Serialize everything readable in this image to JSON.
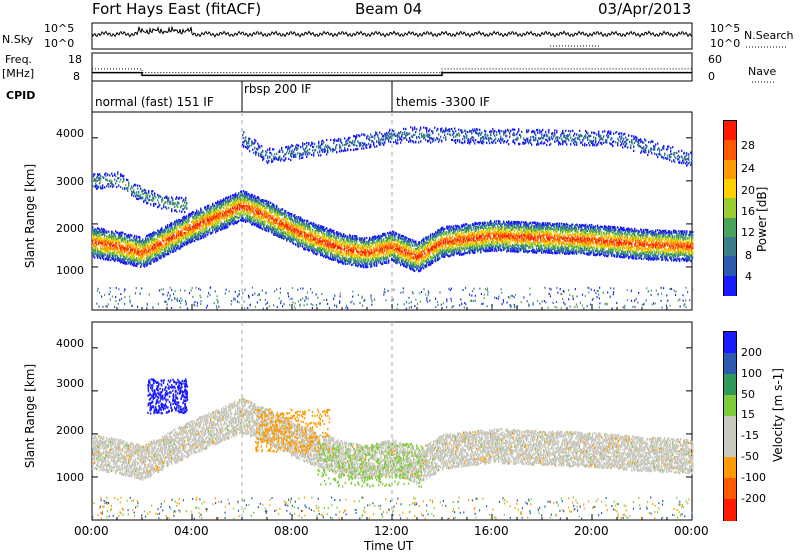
{
  "header": {
    "station": "Fort Hays East (fitACF)",
    "beam": "Beam 04",
    "date": "03/Apr/2013"
  },
  "top_panels": {
    "nsky_label": "N.Sky",
    "nsearch_label": "N.Search",
    "nsky_ticks": [
      "10^5",
      "10^0"
    ],
    "nsearch_ticks": [
      "10^5",
      "10^0"
    ],
    "freq_label_1": "Freq.",
    "freq_label_2": "[MHz]",
    "freq_ticks": [
      "18",
      "8"
    ],
    "nave_label": "Nave",
    "nave_ticks": [
      "60",
      "0"
    ],
    "cpid_label": "CPID",
    "freq_series_mhz": [
      [
        0,
        11
      ],
      [
        2,
        11
      ],
      [
        2,
        10
      ],
      [
        14,
        10
      ],
      [
        14,
        11
      ],
      [
        24,
        11
      ]
    ],
    "nave_series": [
      [
        0,
        26
      ],
      [
        2,
        26
      ],
      [
        2,
        18
      ],
      [
        14,
        18
      ],
      [
        14,
        26
      ],
      [
        24,
        26
      ]
    ],
    "cpid_segments": [
      {
        "start": 0,
        "end": 6,
        "label": "normal (fast) 151 IF"
      },
      {
        "start": 6,
        "end": 12,
        "label": "rbsp 200 IF"
      },
      {
        "start": 12,
        "end": 24,
        "label": "themis -3300 IF"
      }
    ]
  },
  "colorbars": {
    "power_label": "Power [dB]",
    "power_ticks": [
      "28",
      "24",
      "20",
      "16",
      "12",
      "8",
      "4"
    ],
    "velocity_label": "Velocity [m s-1]",
    "velocity_ticks": [
      "200",
      "100",
      "50",
      "15",
      "-15",
      "-50",
      "-100",
      "-200"
    ]
  },
  "axes": {
    "ylabel": "Slant Range [km]",
    "yticks": [
      "4000",
      "3000",
      "2000",
      "1000"
    ],
    "xlabel": "Time UT",
    "xticks": [
      "00:00",
      "04:00",
      "08:00",
      "12:00",
      "16:00",
      "20:00",
      "00:00"
    ]
  },
  "chart_data": [
    {
      "type": "heatmap",
      "title": "Power",
      "xlabel": "Time UT",
      "ylabel": "Slant Range [km]",
      "xlim": [
        0,
        24
      ],
      "ylim": [
        0,
        4600
      ],
      "colorbar": {
        "label": "Power [dB]",
        "range": [
          0,
          30
        ],
        "colors": [
          "#1a1aff",
          "#2a5bb0",
          "#3a7e8c",
          "#4aa35a",
          "#9bcc2f",
          "#ffd000",
          "#ff9a00",
          "#ff5a00",
          "#ff1a00"
        ]
      },
      "echo_bands": [
        {
          "name": "main",
          "points": [
            [
              0,
              1600
            ],
            [
              1,
              1500
            ],
            [
              2,
              1350
            ],
            [
              3,
              1650
            ],
            [
              4,
              1950
            ],
            [
              5,
              2200
            ],
            [
              6,
              2450
            ],
            [
              7,
              2200
            ],
            [
              8,
              1900
            ],
            [
              9,
              1650
            ],
            [
              10,
              1450
            ],
            [
              11,
              1350
            ],
            [
              12,
              1500
            ],
            [
              13,
              1250
            ],
            [
              14,
              1600
            ],
            [
              16,
              1750
            ],
            [
              18,
              1700
            ],
            [
              20,
              1650
            ],
            [
              22,
              1550
            ],
            [
              24,
              1500
            ]
          ],
          "width": 700,
          "peak_db": 28
        },
        {
          "name": "upper",
          "points": [
            [
              0,
              3000
            ],
            [
              1,
              3050
            ],
            [
              2,
              2700
            ],
            [
              3,
              2500
            ],
            [
              3.8,
              2450
            ]
          ],
          "width": 350,
          "peak_db": 12
        },
        {
          "name": "far-range",
          "points": [
            [
              6,
              4000
            ],
            [
              7,
              3600
            ],
            [
              12.5,
              4100
            ],
            [
              21,
              4000
            ],
            [
              24,
              3500
            ]
          ],
          "width": 350,
          "peak_db": 8
        }
      ]
    },
    {
      "type": "heatmap",
      "title": "Velocity",
      "xlabel": "Time UT",
      "ylabel": "Slant Range [km]",
      "xlim": [
        0,
        24
      ],
      "ylim": [
        0,
        4600
      ],
      "colorbar": {
        "label": "Velocity [m s-1]",
        "range": [
          -200,
          200
        ],
        "colors": [
          "#ff1a00",
          "#ff5a00",
          "#ff9a00",
          "#c8c8be",
          "#c8c8be",
          "#7ecc3a",
          "#2f9a5a",
          "#2a5bb0",
          "#1a1aff"
        ]
      },
      "echo_regions": [
        {
          "name": "ground-scatter",
          "from_h": 0,
          "to_h": 24,
          "velocity": 0,
          "color_class": "grey"
        },
        {
          "name": "blue-patch",
          "from_h": 2.2,
          "to_h": 3.8,
          "range_km": [
            2500,
            3300
          ],
          "velocity": 200
        },
        {
          "name": "orange-patch",
          "from_h": 6.5,
          "to_h": 9.5,
          "range_km": [
            1600,
            2600
          ],
          "velocity": -60
        },
        {
          "name": "green-patch",
          "from_h": 9.0,
          "to_h": 13.2,
          "range_km": [
            800,
            1800
          ],
          "velocity": 40
        }
      ]
    }
  ]
}
